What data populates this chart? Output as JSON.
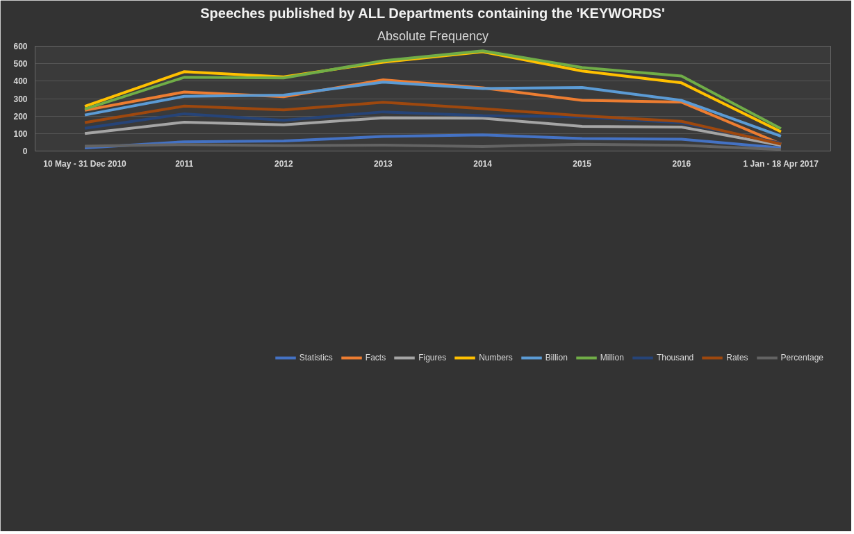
{
  "chart_data": {
    "type": "line",
    "title": "Speeches published by ALL Departments containing the 'KEYWORDS'",
    "subtitle": "Absolute Frequency",
    "categories": [
      "10 May - 31 Dec 2010",
      "2011",
      "2012",
      "2013",
      "2014",
      "2015",
      "2016",
      "1 Jan - 18 Apr 2017"
    ],
    "ylim": [
      0,
      600
    ],
    "yticks": [
      0,
      100,
      200,
      300,
      400,
      500,
      600
    ],
    "grid": "y",
    "legend": "bottom",
    "marker": "none",
    "line_style": "solid",
    "series": [
      {
        "name": "Statistics",
        "color": "#4472c4",
        "values": [
          18,
          53,
          58,
          83,
          92,
          72,
          68,
          18
        ]
      },
      {
        "name": "Facts",
        "color": "#ed7d31",
        "values": [
          233,
          338,
          311,
          407,
          362,
          290,
          280,
          40
        ]
      },
      {
        "name": "Figures",
        "color": "#a5a5a5",
        "values": [
          100,
          165,
          150,
          190,
          188,
          141,
          137,
          33
        ]
      },
      {
        "name": "Numbers",
        "color": "#ffc000",
        "values": [
          256,
          454,
          424,
          509,
          568,
          458,
          390,
          110
        ]
      },
      {
        "name": "Billion",
        "color": "#5b9bd5",
        "values": [
          206,
          313,
          320,
          394,
          358,
          364,
          290,
          85
        ]
      },
      {
        "name": "Million",
        "color": "#70ad47",
        "values": [
          240,
          422,
          418,
          517,
          573,
          478,
          429,
          128
        ]
      },
      {
        "name": "Thousand",
        "color": "#264478",
        "values": [
          130,
          213,
          176,
          224,
          203,
          195,
          162,
          45
        ]
      },
      {
        "name": "Rates",
        "color": "#9e480e",
        "values": [
          163,
          257,
          235,
          279,
          242,
          202,
          170,
          40
        ]
      },
      {
        "name": "Percentage",
        "color": "#636363",
        "values": [
          28,
          37,
          31,
          34,
          26,
          39,
          33,
          9
        ]
      }
    ]
  }
}
